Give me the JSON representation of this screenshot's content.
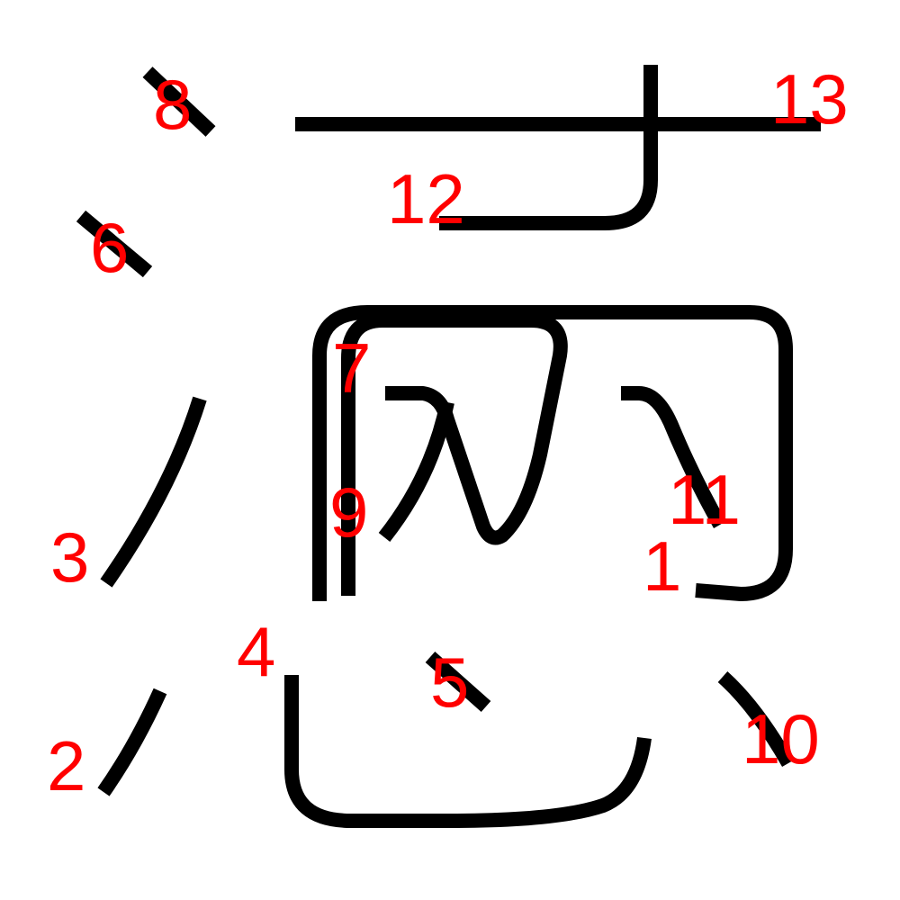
{
  "diagram": {
    "stroke_color": "#000000",
    "label_color": "#ff0000",
    "strokes": [
      {
        "id": "stroke-1",
        "label": "1"
      },
      {
        "id": "stroke-2",
        "label": "2"
      },
      {
        "id": "stroke-3",
        "label": "3"
      },
      {
        "id": "stroke-4",
        "label": "4"
      },
      {
        "id": "stroke-5",
        "label": "5"
      },
      {
        "id": "stroke-6",
        "label": "6"
      },
      {
        "id": "stroke-7",
        "label": "7"
      },
      {
        "id": "stroke-8",
        "label": "8"
      },
      {
        "id": "stroke-9",
        "label": "9"
      },
      {
        "id": "stroke-10",
        "label": "10"
      },
      {
        "id": "stroke-11",
        "label": "11"
      },
      {
        "id": "stroke-12",
        "label": "12"
      },
      {
        "id": "stroke-13",
        "label": "13"
      }
    ]
  }
}
